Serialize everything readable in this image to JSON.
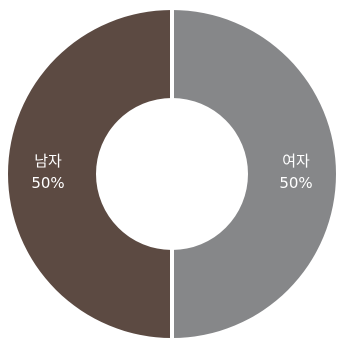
{
  "chart_data": {
    "type": "pie",
    "donut": true,
    "start_angle_deg": 90,
    "direction": "clockwise",
    "gap_color": "#ffffff",
    "slices": [
      {
        "label": "여자",
        "value": 50,
        "value_label": "50%",
        "color": "#868789"
      },
      {
        "label": "남자",
        "value": 50,
        "value_label": "50%",
        "color": "#5c4a42"
      }
    ],
    "legend": "none"
  }
}
